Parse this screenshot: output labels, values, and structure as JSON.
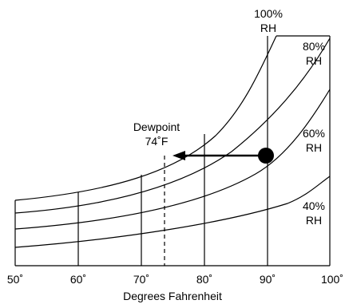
{
  "diagram": {
    "x_tick_labels": [
      "50˚",
      "60˚",
      "70˚",
      "80˚",
      "90˚",
      "100˚"
    ],
    "x_axis_label": "Degrees Fahrenheit",
    "rh_curves": [
      {
        "pct_label": "100%",
        "rh_label": "RH"
      },
      {
        "pct_label": "80%",
        "rh_label": "RH"
      },
      {
        "pct_label": "60%",
        "rh_label": "RH"
      },
      {
        "pct_label": "40%",
        "rh_label": "RH"
      }
    ],
    "dewpoint": {
      "title": "Dewpoint",
      "value_label": "74˚F",
      "temp": 74
    },
    "air_point": {
      "temp": 90,
      "rh": 60
    },
    "line_color": "#000000"
  }
}
